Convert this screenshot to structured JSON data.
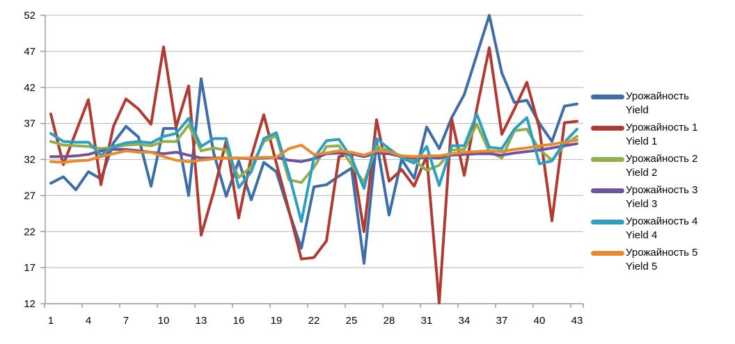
{
  "chart_data": {
    "type": "line",
    "title": "",
    "xlabel": "",
    "ylabel": "",
    "grid": true,
    "legend_position": "right",
    "x": [
      1,
      2,
      3,
      4,
      5,
      6,
      7,
      8,
      9,
      10,
      11,
      12,
      13,
      14,
      15,
      16,
      17,
      18,
      19,
      20,
      21,
      22,
      23,
      24,
      25,
      26,
      27,
      28,
      29,
      30,
      31,
      32,
      33,
      34,
      35,
      36,
      37,
      38,
      39,
      40,
      41,
      42,
      43
    ],
    "x_tick_labels": [
      "1",
      "4",
      "7",
      "10",
      "13",
      "16",
      "19",
      "22",
      "25",
      "28",
      "31",
      "34",
      "37",
      "40",
      "43"
    ],
    "x_tick_cats": [
      1,
      4,
      7,
      10,
      13,
      16,
      19,
      22,
      25,
      28,
      31,
      34,
      37,
      40,
      43
    ],
    "y_ticks": [
      "52",
      "47",
      "42",
      "37",
      "32",
      "27",
      "22",
      "17",
      "12"
    ],
    "y_tick_values": [
      52,
      47,
      42,
      37,
      32,
      27,
      22,
      17,
      12
    ],
    "ylim": [
      12,
      52
    ],
    "xlim": [
      1,
      43
    ],
    "colors": {
      "axis": "#9b9b9b",
      "gridline": "#c3c3c3",
      "text": "#000000",
      "background": "#ffffff"
    },
    "series": [
      {
        "name": "Урожайность",
        "name_en": "Yield",
        "color": "#3e6ea8",
        "values": [
          28.7,
          29.6,
          27.8,
          30.3,
          29.3,
          34.3,
          36.6,
          35.1,
          28.3,
          36.3,
          36.3,
          27.0,
          43.2,
          32.9,
          26.9,
          31.8,
          26.4,
          31.6,
          30.3,
          24.8,
          19.7,
          28.2,
          28.5,
          29.7,
          30.8,
          17.6,
          34.5,
          24.3,
          32.0,
          29.4,
          36.5,
          33.5,
          37.8,
          41.0,
          46.5,
          52.0,
          44.0,
          39.9,
          40.2,
          37.0,
          34.5,
          39.4,
          39.7
        ]
      },
      {
        "name": "Урожайность 1",
        "name_en": "Yield 1",
        "color": "#af3b33",
        "values": [
          38.3,
          31.3,
          35.8,
          40.3,
          28.5,
          36.6,
          40.4,
          39.0,
          36.9,
          47.6,
          36.5,
          42.2,
          21.5,
          27.5,
          34.6,
          23.9,
          32.4,
          38.2,
          31.5,
          25.0,
          18.2,
          18.4,
          20.7,
          32.4,
          32.8,
          22.0,
          37.5,
          29.0,
          30.6,
          28.3,
          32.5,
          12.1,
          37.6,
          29.8,
          39.0,
          47.5,
          35.5,
          39.0,
          42.7,
          36.3,
          23.5,
          37.1,
          37.3
        ]
      },
      {
        "name": "Урожайность 2",
        "name_en": "Yield 2",
        "color": "#92af4d",
        "values": [
          34.5,
          34.0,
          33.9,
          33.8,
          33.5,
          33.7,
          34.0,
          34.1,
          33.9,
          34.5,
          34.5,
          36.8,
          33.2,
          33.6,
          33.3,
          29.5,
          31.0,
          34.5,
          35.3,
          29.2,
          28.8,
          30.9,
          33.8,
          33.9,
          31.3,
          28.8,
          33.8,
          33.2,
          32.4,
          31.9,
          30.5,
          31.2,
          33.3,
          33.4,
          36.9,
          33.1,
          32.2,
          36.0,
          36.2,
          33.4,
          31.9,
          34.0,
          35.2
        ]
      },
      {
        "name": "Урожайность 3",
        "name_en": "Yield 3",
        "color": "#70549b",
        "values": [
          32.4,
          32.4,
          32.5,
          32.7,
          33.2,
          33.4,
          33.4,
          33.2,
          33.0,
          32.8,
          33.0,
          32.6,
          32.2,
          32.2,
          32.2,
          32.2,
          32.1,
          32.2,
          32.3,
          31.9,
          31.7,
          32.1,
          32.8,
          32.9,
          32.8,
          32.4,
          32.9,
          32.8,
          32.4,
          32.2,
          32.3,
          32.2,
          32.6,
          32.7,
          32.8,
          32.8,
          32.6,
          32.9,
          33.1,
          33.3,
          33.6,
          33.9,
          34.2
        ]
      },
      {
        "name": "Урожайность 4",
        "name_en": "Yield 4",
        "color": "#2d9fc2",
        "values": [
          35.6,
          34.5,
          34.4,
          34.4,
          32.6,
          33.8,
          34.3,
          34.5,
          34.3,
          35.2,
          35.6,
          37.7,
          33.8,
          34.9,
          34.9,
          28.1,
          30.3,
          34.9,
          35.7,
          30.0,
          23.4,
          32.2,
          34.6,
          34.8,
          32.2,
          28.0,
          34.9,
          33.5,
          32.2,
          31.5,
          33.8,
          28.4,
          33.9,
          33.9,
          38.3,
          33.7,
          33.5,
          36.2,
          37.8,
          31.4,
          31.8,
          34.4,
          36.2
        ]
      },
      {
        "name": "Урожайность 5",
        "name_en": "Yield 5",
        "color": "#e78b2f",
        "values": [
          31.7,
          31.6,
          31.8,
          31.9,
          32.4,
          32.8,
          33.2,
          33.0,
          33.0,
          32.4,
          31.9,
          31.7,
          31.9,
          32.1,
          32.2,
          32.2,
          32.2,
          32.3,
          32.3,
          33.5,
          34.0,
          32.7,
          32.9,
          33.2,
          33.0,
          32.6,
          33.2,
          33.1,
          32.5,
          32.4,
          32.5,
          32.5,
          32.8,
          33.0,
          33.1,
          33.2,
          33.1,
          33.4,
          33.6,
          33.9,
          34.1,
          34.4,
          34.7
        ]
      }
    ]
  }
}
